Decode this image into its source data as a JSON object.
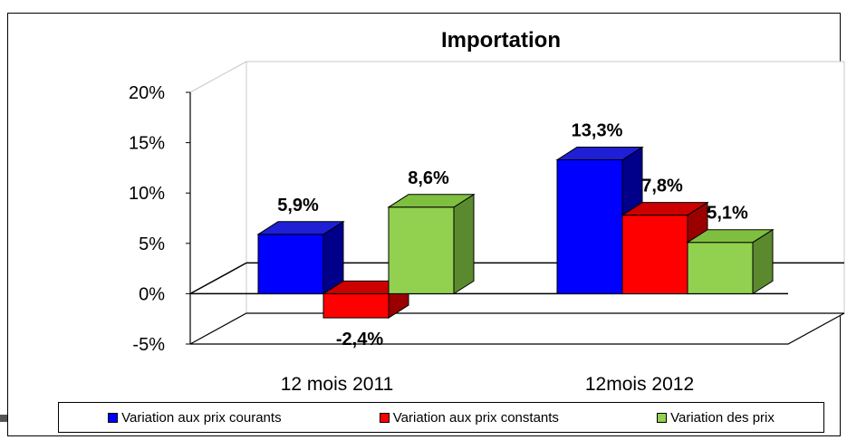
{
  "chart_data": {
    "type": "bar",
    "title": "Importation",
    "categories": [
      "12 mois 2011",
      "12mois 2012"
    ],
    "series": [
      {
        "name": "Variation aux prix courants",
        "values": [
          5.9,
          13.3
        ],
        "labels": [
          "5,9%",
          "13,3%"
        ],
        "color": "#0000ff",
        "side": "#00008b",
        "top": "#1f1fd6"
      },
      {
        "name": "Variation aux prix constants",
        "values": [
          -2.4,
          7.8
        ],
        "labels": [
          "-2,4%",
          "7,8%"
        ],
        "color": "#ff0000",
        "side": "#9b0000",
        "top": "#cc0000"
      },
      {
        "name": "Variation des prix",
        "values": [
          8.6,
          5.1
        ],
        "labels": [
          "8,6%",
          "5,1%"
        ],
        "color": "#92d050",
        "side": "#5b8a2e",
        "top": "#7fbf3f"
      }
    ],
    "ylim": [
      -5,
      20
    ],
    "yticks": [
      -5,
      0,
      5,
      10,
      15,
      20
    ],
    "ytick_labels": [
      "-5%",
      "0%",
      "5%",
      "10%",
      "15%",
      "20%"
    ],
    "legend": "bottom"
  }
}
